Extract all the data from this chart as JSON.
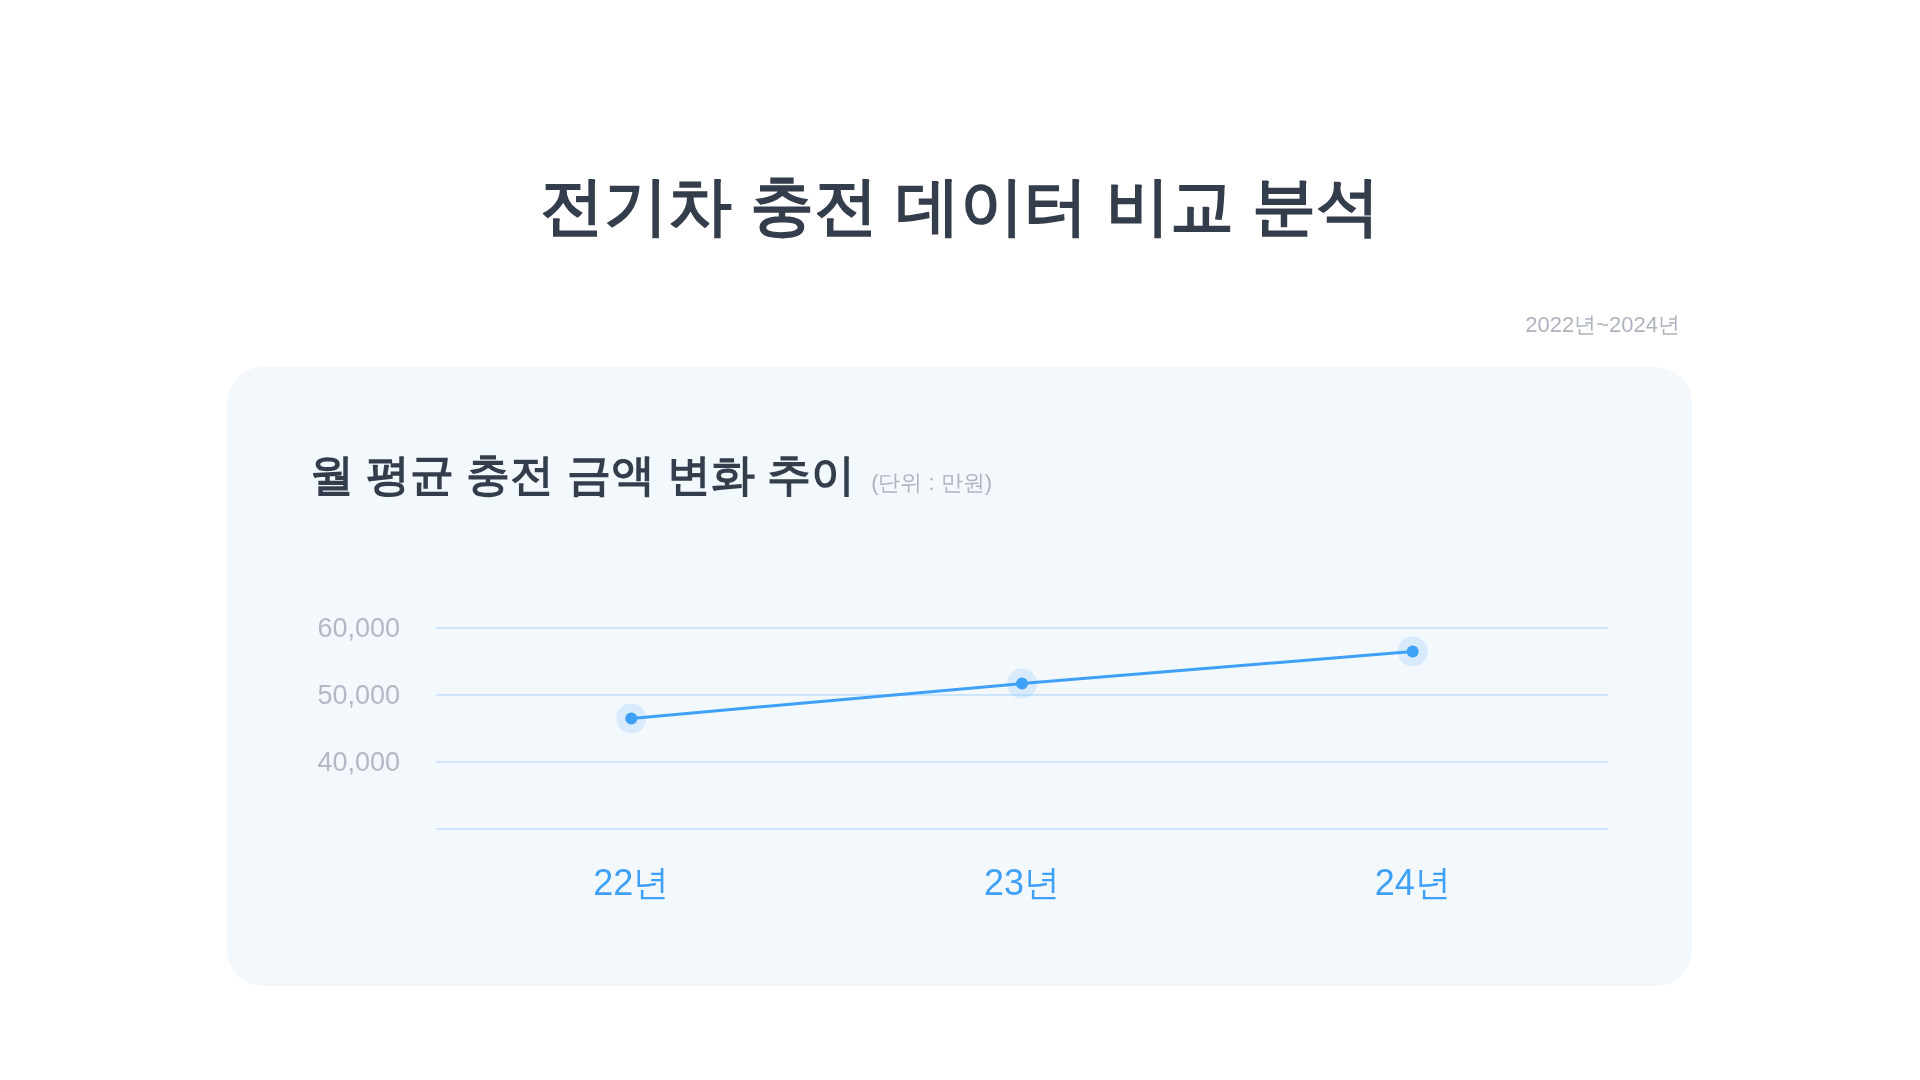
{
  "chart_data": {
    "type": "line",
    "title": "전기차 충전 데이터 비교 분석",
    "subtitle": "월 평균 충전 금액 변화 추이",
    "annotations": [
      "2022년~2024년",
      "(단위 : 만원)"
    ],
    "categories": [
      "22년",
      "23년",
      "24년"
    ],
    "series": [
      {
        "color": "#3fa0f7",
        "values": [
          46500,
          51700,
          56500
        ]
      }
    ],
    "ylim": [
      30000,
      60000
    ],
    "yticks": [
      {
        "value": 30000,
        "label": null
      },
      {
        "value": 40000,
        "label": "40,000"
      },
      {
        "value": 50000,
        "label": "50,000"
      },
      {
        "value": 60000,
        "label": "60,000"
      }
    ],
    "grid": "y",
    "marker": "circle",
    "line_style": "solid"
  }
}
